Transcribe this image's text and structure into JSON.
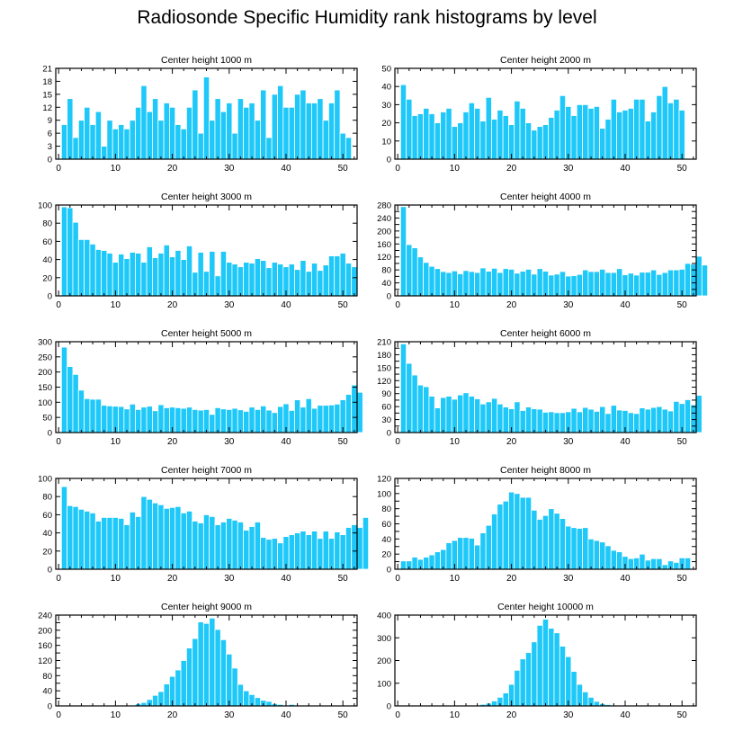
{
  "title": "Radiosonde Specific Humidity rank histograms by level",
  "colors": {
    "bar": "#1ec8f8",
    "bar_stroke": "#ffffff",
    "axis": "#000000"
  },
  "chart_data": [
    {
      "type": "bar",
      "title": "Center height 1000 m",
      "xlim": [
        -0.5,
        52.5
      ],
      "ylim": [
        0,
        21
      ],
      "xticks": [
        0,
        10,
        20,
        30,
        40,
        50
      ],
      "yticks": [
        0,
        3,
        6,
        9,
        12,
        15,
        18,
        21
      ],
      "x_start": 1,
      "values": [
        8,
        14,
        5,
        9,
        12,
        8,
        11,
        3,
        9,
        7,
        8,
        7,
        9,
        12,
        17,
        11,
        14,
        9,
        13,
        12,
        8,
        7,
        12,
        16,
        6,
        19,
        9,
        14,
        11,
        13,
        6,
        14,
        12,
        13,
        9,
        16,
        5,
        15,
        17,
        12,
        12,
        15,
        16,
        13,
        13,
        14,
        9,
        13,
        16,
        6,
        5
      ]
    },
    {
      "type": "bar",
      "title": "Center height 2000 m",
      "xlim": [
        -0.5,
        52.5
      ],
      "ylim": [
        0,
        50
      ],
      "xticks": [
        0,
        10,
        20,
        30,
        40,
        50
      ],
      "yticks": [
        0,
        10,
        20,
        30,
        40,
        50
      ],
      "x_start": 1,
      "values": [
        41,
        33,
        24,
        25,
        28,
        25,
        20,
        26,
        28,
        18,
        20,
        26,
        31,
        28,
        21,
        34,
        22,
        27,
        24,
        19,
        32,
        28,
        20,
        16,
        18,
        19,
        23,
        27,
        35,
        29,
        24,
        30,
        30,
        28,
        29,
        17,
        22,
        33,
        26,
        27,
        28,
        33,
        33,
        21,
        26,
        35,
        40,
        31,
        33,
        27
      ]
    },
    {
      "type": "bar",
      "title": "Center height 3000 m",
      "xlim": [
        -0.5,
        52.5
      ],
      "ylim": [
        0,
        100
      ],
      "xticks": [
        0,
        10,
        20,
        30,
        40,
        50
      ],
      "yticks": [
        0,
        20,
        40,
        60,
        80,
        100
      ],
      "x_start": 1,
      "values": [
        98,
        97,
        81,
        62,
        62,
        57,
        51,
        50,
        47,
        37,
        46,
        41,
        48,
        47,
        37,
        54,
        42,
        47,
        56,
        43,
        50,
        40,
        55,
        26,
        48,
        27,
        49,
        22,
        49,
        37,
        35,
        32,
        37,
        36,
        41,
        39,
        31,
        37,
        35,
        32,
        35,
        29,
        39,
        27,
        36,
        28,
        34,
        44,
        44,
        47,
        36,
        32
      ]
    },
    {
      "type": "bar",
      "title": "Center height 4000 m",
      "xlim": [
        -0.5,
        52.5
      ],
      "ylim": [
        0,
        280
      ],
      "xticks": [
        0,
        10,
        20,
        30,
        40,
        50
      ],
      "yticks": [
        0,
        20,
        40,
        60,
        80,
        100,
        120,
        140,
        160,
        180,
        200,
        220,
        240,
        260,
        280
      ],
      "ytick_labels": [
        "0",
        "",
        "40",
        "",
        "80",
        "",
        "120",
        "",
        "160",
        "",
        "200",
        "",
        "240",
        "",
        "280"
      ],
      "x_start": 1,
      "values": [
        275,
        158,
        148,
        120,
        103,
        91,
        84,
        75,
        72,
        77,
        68,
        78,
        75,
        72,
        86,
        76,
        85,
        72,
        84,
        82,
        70,
        76,
        82,
        67,
        84,
        76,
        64,
        67,
        75,
        61,
        62,
        66,
        80,
        75,
        75,
        82,
        72,
        72,
        84,
        65,
        70,
        64,
        73,
        73,
        80,
        66,
        72,
        80,
        80,
        82,
        100,
        98,
        122,
        95
      ]
    },
    {
      "type": "bar",
      "title": "Center height 5000 m",
      "xlim": [
        -0.5,
        52.5
      ],
      "ylim": [
        0,
        300
      ],
      "xticks": [
        0,
        10,
        20,
        30,
        40,
        50
      ],
      "yticks": [
        0,
        50,
        100,
        150,
        200,
        250,
        300
      ],
      "x_start": 1,
      "values": [
        282,
        218,
        192,
        140,
        112,
        110,
        110,
        90,
        88,
        87,
        86,
        78,
        94,
        76,
        84,
        87,
        72,
        92,
        82,
        84,
        82,
        80,
        84,
        76,
        74,
        76,
        60,
        82,
        78,
        76,
        80,
        75,
        70,
        84,
        76,
        88,
        74,
        66,
        86,
        95,
        73,
        108,
        84,
        112,
        80,
        90,
        90,
        91,
        94,
        108,
        126,
        157,
        133
      ]
    },
    {
      "type": "bar",
      "title": "Center height 6000 m",
      "xlim": [
        -0.5,
        52.5
      ],
      "ylim": [
        0,
        210
      ],
      "xticks": [
        0,
        10,
        20,
        30,
        40,
        50
      ],
      "yticks": [
        0,
        15,
        30,
        45,
        60,
        75,
        90,
        105,
        120,
        135,
        150,
        165,
        180,
        195,
        210
      ],
      "ytick_labels": [
        "0",
        "",
        "30",
        "",
        "60",
        "",
        "90",
        "",
        "120",
        "",
        "150",
        "",
        "180",
        "",
        "210"
      ],
      "x_start": 1,
      "values": [
        205,
        160,
        133,
        110,
        106,
        84,
        57,
        81,
        84,
        77,
        87,
        92,
        84,
        78,
        66,
        71,
        79,
        66,
        59,
        55,
        71,
        51,
        59,
        55,
        54,
        47,
        48,
        46,
        46,
        48,
        56,
        48,
        58,
        54,
        49,
        60,
        44,
        63,
        52,
        51,
        46,
        44,
        57,
        54,
        58,
        60,
        54,
        50,
        72,
        67,
        76,
        64,
        86
      ]
    },
    {
      "type": "bar",
      "title": "Center height 7000 m",
      "xlim": [
        -0.5,
        52.5
      ],
      "ylim": [
        0,
        100
      ],
      "xticks": [
        0,
        10,
        20,
        30,
        40,
        50
      ],
      "yticks": [
        0,
        20,
        40,
        60,
        80,
        100
      ],
      "x_start": 1,
      "values": [
        91,
        70,
        69,
        66,
        64,
        62,
        53,
        57,
        57,
        57,
        56,
        49,
        63,
        58,
        80,
        77,
        73,
        71,
        67,
        68,
        69,
        62,
        64,
        53,
        51,
        60,
        58,
        49,
        52,
        56,
        54,
        52,
        43,
        47,
        52,
        35,
        33,
        34,
        29,
        36,
        38,
        40,
        42,
        38,
        42,
        34,
        42,
        34,
        41,
        38,
        46,
        49,
        46,
        57
      ]
    },
    {
      "type": "bar",
      "title": "Center height 8000 m",
      "xlim": [
        -0.5,
        52.5
      ],
      "ylim": [
        0,
        120
      ],
      "xticks": [
        0,
        10,
        20,
        30,
        40,
        50
      ],
      "yticks": [
        0,
        10,
        20,
        30,
        40,
        50,
        60,
        70,
        80,
        90,
        100,
        110,
        120
      ],
      "ytick_labels": [
        "0",
        "",
        "20",
        "",
        "40",
        "",
        "60",
        "",
        "80",
        "",
        "100",
        "",
        "120"
      ],
      "x_start": 1,
      "values": [
        11,
        11,
        16,
        13,
        16,
        19,
        23,
        26,
        35,
        38,
        42,
        42,
        41,
        32,
        48,
        58,
        73,
        86,
        90,
        102,
        100,
        95,
        95,
        78,
        66,
        71,
        80,
        74,
        67,
        57,
        55,
        54,
        55,
        40,
        38,
        36,
        31,
        25,
        23,
        17,
        14,
        15,
        20,
        12,
        14,
        14,
        6,
        11,
        9,
        15,
        15
      ]
    },
    {
      "type": "bar",
      "title": "Center height 9000 m",
      "xlim": [
        -0.5,
        52.5
      ],
      "ylim": [
        0,
        240
      ],
      "xticks": [
        0,
        10,
        20,
        30,
        40,
        50
      ],
      "yticks": [
        0,
        20,
        40,
        60,
        80,
        100,
        120,
        140,
        160,
        180,
        200,
        220,
        240
      ],
      "ytick_labels": [
        "0",
        "",
        "40",
        "",
        "80",
        "",
        "120",
        "",
        "160",
        "",
        "200",
        "",
        "240"
      ],
      "x_start": 1,
      "values": [
        0,
        0,
        0,
        0,
        1,
        2,
        1,
        1,
        1,
        2,
        2,
        1,
        2,
        6,
        9,
        17,
        28,
        38,
        58,
        78,
        95,
        120,
        153,
        178,
        222,
        218,
        232,
        202,
        175,
        137,
        100,
        57,
        40,
        30,
        22,
        15,
        12,
        6,
        4,
        2,
        4,
        2,
        1,
        0,
        1,
        0,
        0,
        2,
        0,
        0,
        0
      ]
    },
    {
      "type": "bar",
      "title": "Center height 10000 m",
      "xlim": [
        -0.5,
        52.5
      ],
      "ylim": [
        0,
        400
      ],
      "xticks": [
        0,
        10,
        20,
        30,
        40,
        50
      ],
      "yticks": [
        0,
        100,
        200,
        300,
        400
      ],
      "x_start": 1,
      "values": [
        0,
        0,
        0,
        0,
        0,
        0,
        0,
        0,
        0,
        0,
        0,
        0,
        0,
        2,
        7,
        12,
        22,
        38,
        57,
        95,
        157,
        207,
        235,
        282,
        355,
        382,
        342,
        322,
        263,
        217,
        152,
        95,
        62,
        38,
        20,
        10,
        6,
        3,
        1,
        1,
        0,
        0,
        0,
        0,
        0,
        0,
        0,
        0,
        0,
        0,
        0
      ]
    }
  ]
}
